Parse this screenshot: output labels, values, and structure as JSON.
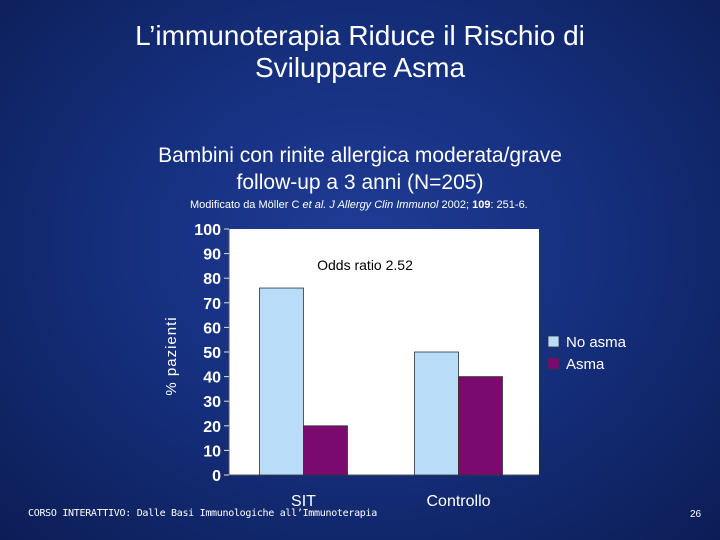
{
  "slide": {
    "title_line1": "L’immunoterapia Riduce il Rischio di",
    "title_line2": "Sviluppare Asma",
    "subtitle_line1": "Bambini con rinite allergica moderata/grave",
    "subtitle_line2": "follow-up a 3 anni (N=205)",
    "citation": {
      "prefix": "Modificato da Möller C ",
      "et_al": "et al.",
      "journal": " J Allergy Clin Immunol",
      "year": " 2002; ",
      "volume": "109",
      "pages": ": 251-6."
    },
    "footer": "CORSO INTERATTIVO: Dalle Basi Immunologiche all’Immunoterapia",
    "page_number": "26"
  },
  "chart_data": {
    "type": "bar",
    "categories": [
      "SIT",
      "Controllo"
    ],
    "series": [
      {
        "name": "No asma",
        "values": [
          76,
          50
        ],
        "color": "#b9dcf8"
      },
      {
        "name": "Asma",
        "values": [
          20,
          40
        ],
        "color": "#7b0a6e"
      }
    ],
    "ylabel": "% pazienti",
    "ylim": [
      0,
      100
    ],
    "yticks": [
      "0",
      "10",
      "20",
      "30",
      "40",
      "50",
      "60",
      "70",
      "80",
      "90",
      "100"
    ],
    "legend_position": "right",
    "grid": false,
    "annotation": "Odds ratio 2.52",
    "plot_background": "#ffffff"
  }
}
